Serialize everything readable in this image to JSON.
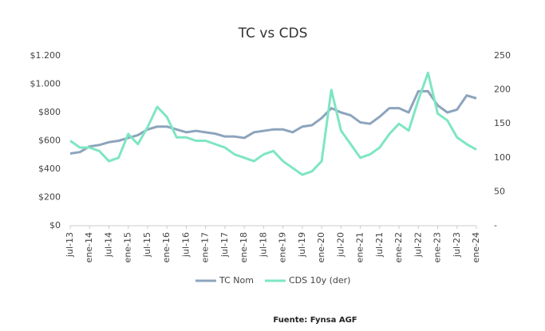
{
  "chart_data": {
    "type": "line",
    "title": "TC vs CDS",
    "source": "Fuente: Fynsa AGF",
    "categories": [
      "jul-13",
      null,
      "ene-14",
      null,
      "jul-14",
      null,
      "ene-15",
      null,
      "jul-15",
      null,
      "ene-16",
      null,
      "jul-16",
      null,
      "ene-17",
      null,
      "jul-17",
      null,
      "ene-18",
      null,
      "jul-18",
      null,
      "ene-19",
      null,
      "jul-19",
      null,
      "ene-20",
      null,
      "jul-20",
      null,
      "ene-21",
      null,
      "jul-21",
      null,
      "ene-22",
      null,
      "jul-22",
      null,
      "ene-23",
      null,
      "jul-23",
      null,
      "ene-24"
    ],
    "series": [
      {
        "name": "TC Nom",
        "color": "#8da4bd",
        "values": [
          510,
          520,
          560,
          570,
          590,
          600,
          620,
          640,
          680,
          700,
          700,
          680,
          660,
          670,
          660,
          650,
          630,
          630,
          620,
          660,
          670,
          680,
          680,
          660,
          700,
          710,
          760,
          830,
          800,
          780,
          730,
          720,
          770,
          830,
          830,
          800,
          950,
          950,
          850,
          800,
          820,
          920,
          900
        ]
      },
      {
        "name": "CDS 10y (der)",
        "color": "#7ee6c2",
        "axis": "y2",
        "values": [
          125,
          115,
          115,
          110,
          95,
          100,
          135,
          120,
          145,
          175,
          160,
          130,
          130,
          125,
          125,
          120,
          115,
          105,
          100,
          95,
          105,
          110,
          95,
          85,
          75,
          80,
          95,
          200,
          140,
          120,
          100,
          105,
          115,
          135,
          150,
          140,
          185,
          225,
          165,
          155,
          130,
          120,
          112
        ]
      }
    ],
    "ylim": [
      0,
      1200
    ],
    "yticks": [
      {
        "value": 0,
        "label": "$0"
      },
      {
        "value": 200,
        "label": "$200"
      },
      {
        "value": 400,
        "label": "$400"
      },
      {
        "value": 600,
        "label": "$600"
      },
      {
        "value": 800,
        "label": "$800"
      },
      {
        "value": 1000,
        "label": "$1.000"
      },
      {
        "value": 1200,
        "label": "$1.200"
      }
    ],
    "y2lim": [
      0,
      250
    ],
    "y2ticks": [
      {
        "value": 0,
        "label": "-"
      },
      50,
      100,
      150,
      200,
      250
    ],
    "legend": "bottom"
  }
}
